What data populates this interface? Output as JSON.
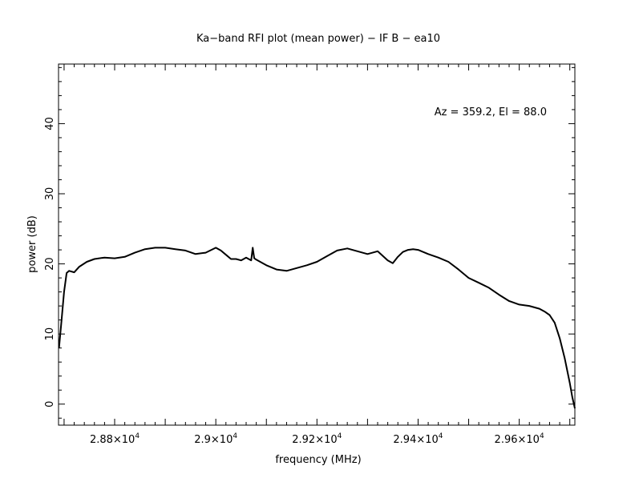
{
  "chart_data": {
    "type": "line",
    "title": "Ka−band RFI plot (mean power) − IF B − ea10",
    "xlabel": "frequency (MHz)",
    "ylabel": "power (dB)",
    "annotation": "Az = 359.2, El = 88.0",
    "xlim": [
      28689,
      29710
    ],
    "ylim": [
      -3,
      48.5
    ],
    "x_ticks": [
      {
        "value": 28800,
        "mantissa": "2.88×10",
        "exp": "4"
      },
      {
        "value": 29000,
        "mantissa": "2.9×10",
        "exp": "4"
      },
      {
        "value": 29200,
        "mantissa": "2.92×10",
        "exp": "4"
      },
      {
        "value": 29400,
        "mantissa": "2.94×10",
        "exp": "4"
      },
      {
        "value": 29600,
        "mantissa": "2.96×10",
        "exp": "4"
      }
    ],
    "y_ticks": [
      {
        "value": 0,
        "label": "0"
      },
      {
        "value": 10,
        "label": "10"
      },
      {
        "value": 20,
        "label": "20"
      },
      {
        "value": 30,
        "label": "30"
      },
      {
        "value": 40,
        "label": "40"
      }
    ],
    "grid": false,
    "series": [
      {
        "color": "#000000",
        "x": [
          28690,
          28695,
          28700,
          28705,
          28710,
          28720,
          28730,
          28745,
          28760,
          28780,
          28800,
          28820,
          28840,
          28860,
          28880,
          28900,
          28920,
          28940,
          28960,
          28980,
          29000,
          29010,
          29020,
          29030,
          29040,
          29050,
          29060,
          29070,
          29073,
          29076,
          29080,
          29100,
          29120,
          29140,
          29160,
          29180,
          29200,
          29220,
          29240,
          29260,
          29280,
          29300,
          29320,
          29340,
          29350,
          29360,
          29370,
          29380,
          29390,
          29400,
          29420,
          29440,
          29460,
          29480,
          29500,
          29520,
          29540,
          29560,
          29580,
          29600,
          29620,
          29640,
          29650,
          29660,
          29670,
          29680,
          29690,
          29700,
          29705,
          29710
        ],
        "y": [
          8,
          12,
          16,
          18.7,
          19.0,
          18.8,
          19.6,
          20.3,
          20.7,
          20.9,
          20.8,
          21.0,
          21.6,
          22.1,
          22.3,
          22.3,
          22.1,
          21.9,
          21.4,
          21.6,
          22.3,
          21.9,
          21.3,
          20.7,
          20.7,
          20.5,
          20.9,
          20.5,
          22.3,
          20.8,
          20.6,
          19.8,
          19.2,
          19.0,
          19.4,
          19.8,
          20.3,
          21.1,
          21.9,
          22.2,
          21.8,
          21.4,
          21.8,
          20.5,
          20.1,
          21.0,
          21.7,
          22.0,
          22.1,
          22.0,
          21.4,
          20.9,
          20.3,
          19.2,
          18.0,
          17.3,
          16.6,
          15.6,
          14.7,
          14.2,
          14.0,
          13.6,
          13.2,
          12.7,
          11.6,
          9.4,
          6.5,
          3.0,
          1.0,
          -0.6
        ]
      }
    ]
  }
}
